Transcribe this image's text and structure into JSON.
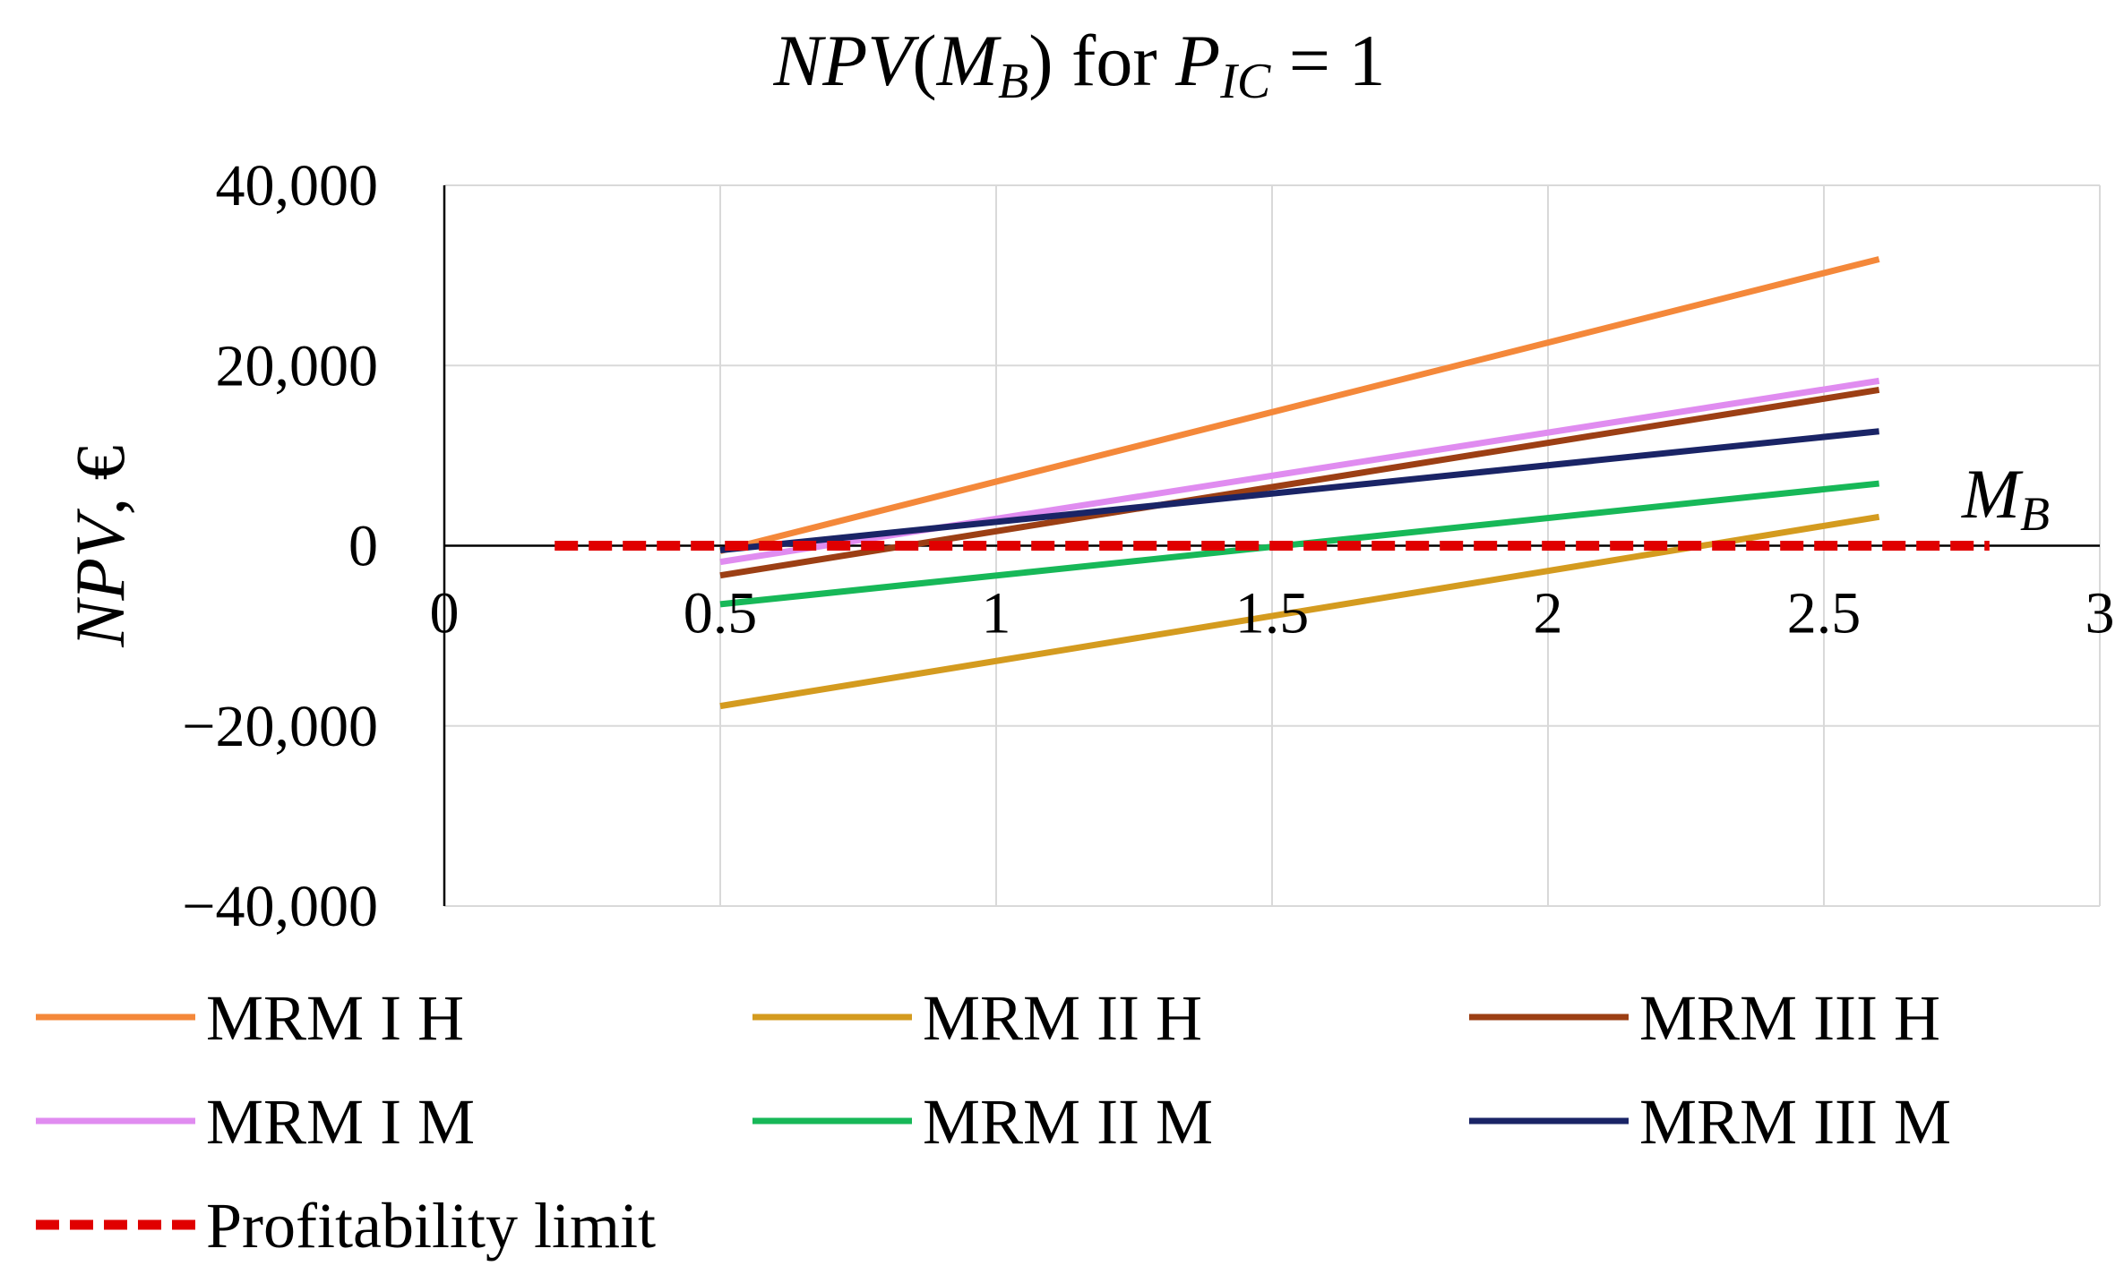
{
  "chart_data": {
    "type": "line",
    "title": {
      "main": "NPV",
      "paren_open": "(",
      "arg": "M",
      "arg_sub": "B",
      "paren_close": ")",
      "mid": " for ",
      "param": "P",
      "param_sub": "IC",
      "suffix": " = 1"
    },
    "xlabel": {
      "main": "M",
      "sub": "B"
    },
    "ylabel": {
      "main": "NPV",
      "suffix": ", €"
    },
    "xlim": [
      0,
      3
    ],
    "ylim": [
      -40000,
      40000
    ],
    "x_ticks": [
      0,
      0.5,
      1,
      1.5,
      2,
      2.5,
      3
    ],
    "x_tick_labels": [
      "0",
      "0.5",
      "1",
      "1.5",
      "2",
      "2.5",
      "3"
    ],
    "y_ticks": [
      40000,
      20000,
      0,
      -20000,
      -40000
    ],
    "y_tick_labels": [
      "40,000",
      "20,000",
      "0",
      "−20,000",
      "−40,000"
    ],
    "grid": true,
    "legend_position": "bottom",
    "series": [
      {
        "name": "MRM I H",
        "color": "#F4883A",
        "dash": false,
        "x": [
          0.5,
          2.6
        ],
        "values": [
          -600,
          31800
        ]
      },
      {
        "name": "MRM II H",
        "color": "#D49B1F",
        "dash": false,
        "x": [
          0.5,
          2.6
        ],
        "values": [
          -17800,
          3200
        ]
      },
      {
        "name": "MRM III H",
        "color": "#9C3F14",
        "dash": false,
        "x": [
          0.5,
          2.6
        ],
        "values": [
          -3300,
          17300
        ]
      },
      {
        "name": "MRM I M",
        "color": "#E08CF0",
        "dash": false,
        "x": [
          0.5,
          2.6
        ],
        "values": [
          -1800,
          18300
        ]
      },
      {
        "name": "MRM II M",
        "color": "#17B858",
        "dash": false,
        "x": [
          0.5,
          2.6
        ],
        "values": [
          -6500,
          6900
        ]
      },
      {
        "name": "MRM III M",
        "color": "#1A2466",
        "dash": false,
        "x": [
          0.5,
          2.6
        ],
        "values": [
          -500,
          12700
        ]
      },
      {
        "name": "Profitability limit",
        "color": "#E00000",
        "dash": true,
        "x": [
          0.2,
          2.8
        ],
        "values": [
          0,
          0
        ]
      }
    ]
  }
}
